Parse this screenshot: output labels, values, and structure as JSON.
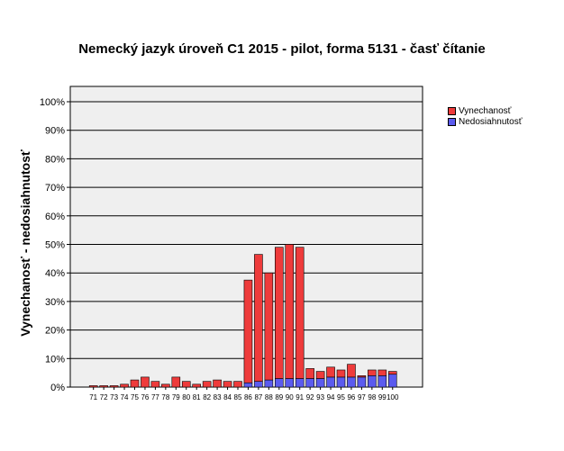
{
  "chart_data": {
    "type": "bar",
    "stacked": true,
    "title": "Nemecký jazyk úroveň C1 2015 - pilot, forma 5131 - časť čítanie",
    "xlabel": "",
    "ylabel": "Vynechanosť - nedosiahnutosť",
    "ylim": [
      0,
      100
    ],
    "yticks": [
      "0%",
      "10%",
      "20%",
      "30%",
      "40%",
      "50%",
      "60%",
      "70%",
      "80%",
      "90%",
      "100%"
    ],
    "grid": true,
    "legend_position": "top-right",
    "categories": [
      "71",
      "72",
      "73",
      "74",
      "75",
      "76",
      "77",
      "78",
      "79",
      "80",
      "81",
      "82",
      "83",
      "84",
      "85",
      "86",
      "87",
      "88",
      "89",
      "90",
      "91",
      "92",
      "93",
      "94",
      "95",
      "96",
      "97",
      "98",
      "99",
      "100"
    ],
    "series": [
      {
        "name": "Nedosiahnutosť",
        "color": "#5b5bef",
        "values": [
          0,
          0,
          0,
          0,
          0,
          0,
          0,
          0,
          0,
          0,
          0,
          0,
          0,
          0,
          0,
          1.5,
          2,
          2.5,
          3,
          3,
          3,
          3,
          3,
          3.5,
          3.5,
          3.5,
          3.5,
          4,
          4,
          4.5
        ]
      },
      {
        "name": "Vynechanosť",
        "color": "#ee3b3b",
        "values": [
          0.5,
          0.5,
          0.5,
          1,
          2.5,
          3.5,
          2,
          1,
          3.5,
          2,
          1,
          2,
          2.5,
          2,
          2,
          36,
          44.5,
          37.5,
          46,
          47,
          46,
          3.5,
          2.5,
          3.5,
          2.5,
          4.5,
          0.5,
          2,
          2,
          1
        ]
      }
    ]
  }
}
